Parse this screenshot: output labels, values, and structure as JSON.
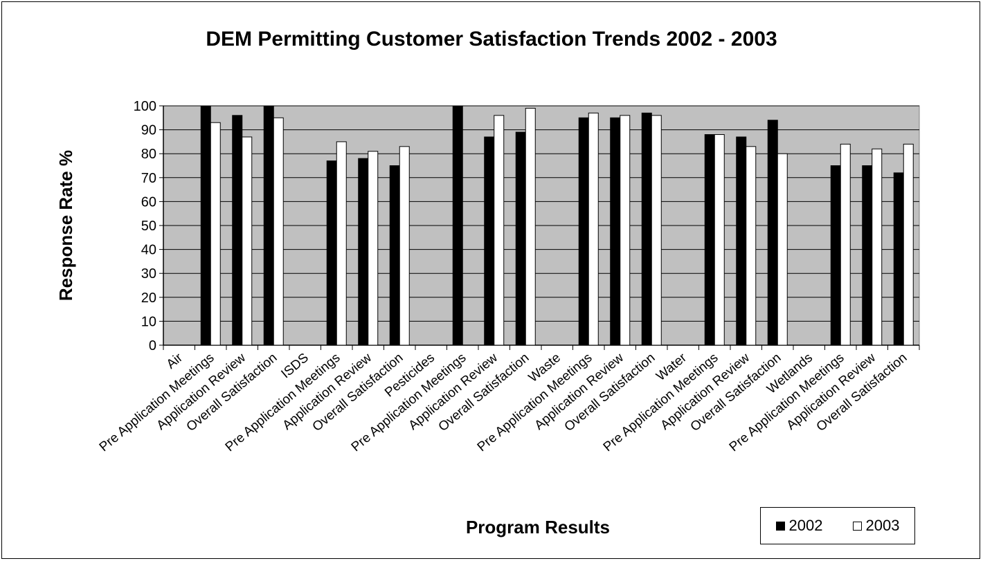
{
  "colors": {
    "plot_background": "#c0c0c0",
    "series_2002": "#000000",
    "series_2003": "#ffffff"
  },
  "chart_data": {
    "type": "bar",
    "title": "DEM Permitting Customer Satisfaction Trends 2002 - 2003",
    "xlabel": "Program Results",
    "ylabel": "Response Rate %",
    "ylim": [
      0,
      100
    ],
    "yticks": [
      0,
      10,
      20,
      30,
      40,
      50,
      60,
      70,
      80,
      90,
      100
    ],
    "legend_position": "bottom-right",
    "categories": [
      "Air",
      "Pre Application Meetings",
      "Application Review",
      "Overall Satisfaction",
      "ISDS",
      "Pre Application Meetings",
      "Application Review",
      "Overall Satisfaction",
      "Pesticides",
      "Pre Application Meetings",
      "Application Review",
      "Overall Satisfaction",
      "Waste",
      "Pre Application Meetings",
      "Application Review",
      "Overall Satisfaction",
      "Water",
      "Pre Application Meetings",
      "Application Review",
      "Overall Satisfaction",
      "Wetlands",
      "Pre Application Meetings",
      "Application Review",
      "Overall Satisfaction"
    ],
    "series": [
      {
        "name": "2002",
        "values": [
          null,
          100,
          96,
          100,
          null,
          77,
          78,
          75,
          null,
          100,
          87,
          89,
          null,
          95,
          95,
          97,
          null,
          88,
          87,
          94,
          null,
          75,
          75,
          72
        ]
      },
      {
        "name": "2003",
        "values": [
          null,
          93,
          87,
          95,
          null,
          85,
          81,
          83,
          null,
          null,
          96,
          99,
          null,
          97,
          96,
          96,
          null,
          88,
          83,
          80,
          null,
          84,
          82,
          84
        ]
      }
    ]
  }
}
